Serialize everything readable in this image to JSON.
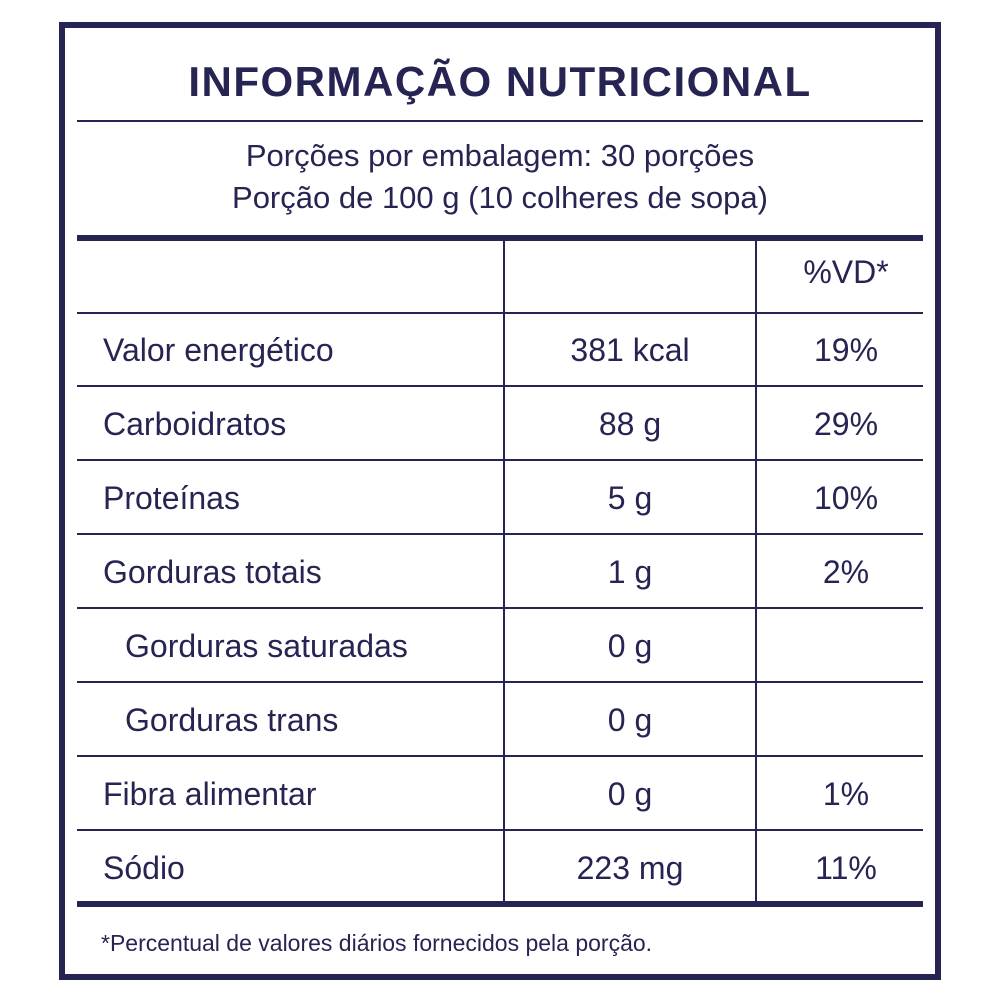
{
  "title": "INFORMAÇÃO NUTRICIONAL",
  "servings_per_package": "Porções por embalagem: 30 porções",
  "serving_size": "Porção de 100 g (10 colheres de sopa)",
  "table": {
    "header": {
      "name": "",
      "amount": "",
      "vd": "%VD*"
    },
    "rows": [
      {
        "name": "Valor energético",
        "amount": "381 kcal",
        "vd": "19%"
      },
      {
        "name": "Carboidratos",
        "amount": "88 g",
        "vd": "29%"
      },
      {
        "name": "Proteínas",
        "amount": "5 g",
        "vd": "10%"
      },
      {
        "name": "Gorduras totais",
        "amount": "1 g",
        "vd": "2%"
      },
      {
        "name": "Gorduras saturadas",
        "amount": "0 g",
        "vd": ""
      },
      {
        "name": "Gorduras trans",
        "amount": "0 g",
        "vd": ""
      },
      {
        "name": "Fibra alimentar",
        "amount": "0 g",
        "vd": "1%"
      },
      {
        "name": "Sódio",
        "amount": "223 mg",
        "vd": "11%"
      }
    ]
  },
  "footnote": "*Percentual de valores diários fornecidos pela porção.",
  "colors": {
    "ink": "#262452",
    "background": "#ffffff"
  }
}
